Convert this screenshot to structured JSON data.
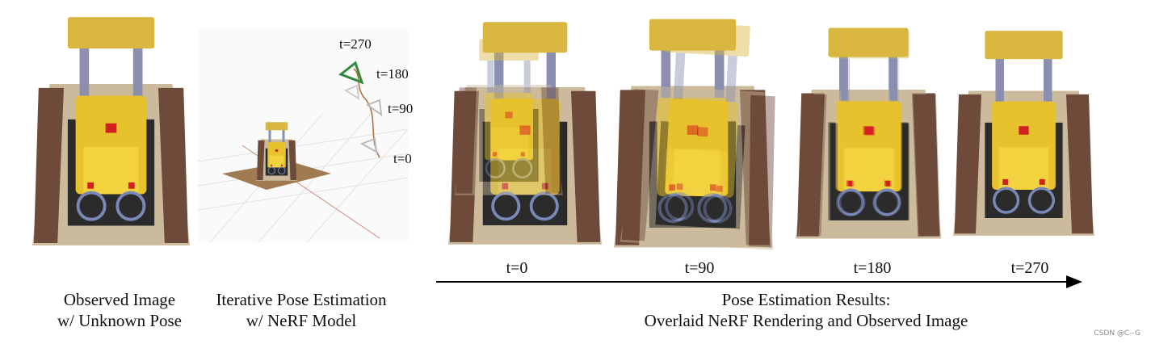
{
  "observed": {
    "caption_line1": "Observed Image",
    "caption_line2": "w/ Unknown Pose"
  },
  "iterative": {
    "caption_line1": "Iterative Pose Estimation",
    "caption_line2": "w/ NeRF Model",
    "camera_labels": [
      "t=270",
      "t=180",
      "t=90",
      "t=0"
    ]
  },
  "results": {
    "frame_labels": [
      "t=0",
      "t=90",
      "t=180",
      "t=270"
    ],
    "caption_line1": "Pose Estimation Results:",
    "caption_line2": "Overlaid NeRF Rendering and Observed Image"
  },
  "watermark": "CSDN @C--G"
}
